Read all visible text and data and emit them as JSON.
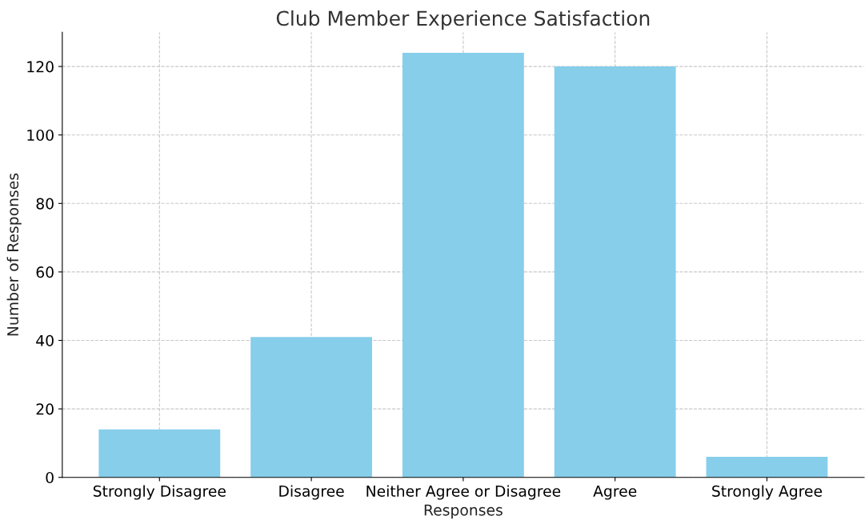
{
  "chart_data": {
    "type": "bar",
    "title": "Club Member Experience Satisfaction",
    "xlabel": "Responses",
    "ylabel": "Number of Responses",
    "categories": [
      "Strongly Disagree",
      "Disagree",
      "Neither Agree or Disagree",
      "Agree",
      "Strongly Agree"
    ],
    "values": [
      14,
      41,
      124,
      120,
      6
    ],
    "color": "#87ceeb",
    "ylim": [
      0,
      130
    ],
    "yticks": [
      0,
      20,
      40,
      60,
      80,
      100,
      120
    ],
    "grid": true,
    "line_style": "dashed"
  }
}
